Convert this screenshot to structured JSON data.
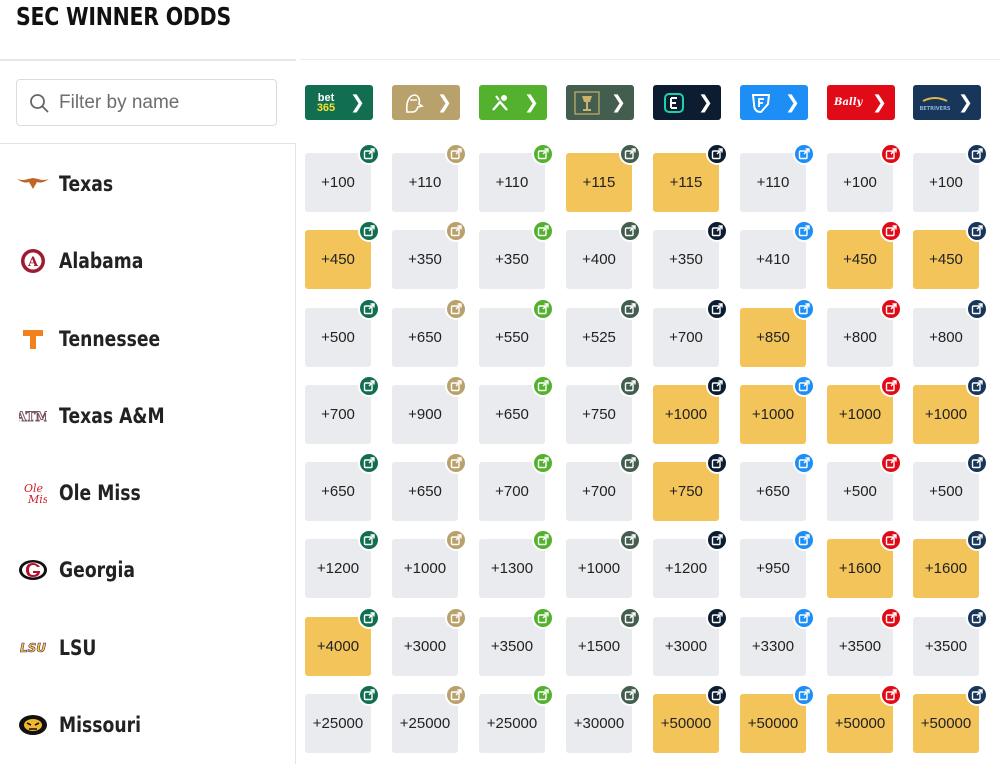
{
  "title": "SEC WINNER ODDS",
  "filter": {
    "placeholder": "Filter by name"
  },
  "books": [
    {
      "name": "bet365",
      "logo_text": "bet\n365",
      "color": "#126e51",
      "logo_color": "#f7e12f"
    },
    {
      "name": "BetMGM",
      "logo_text": "",
      "color": "#b9a16c",
      "logo_color": "#ffffff"
    },
    {
      "name": "DraftKings",
      "logo_text": "",
      "color": "#53b12e",
      "logo_color": "#ffffff"
    },
    {
      "name": "Circa",
      "logo_text": "",
      "color": "#435e4e",
      "logo_color": "#c9b26b"
    },
    {
      "name": "ESPN BET",
      "logo_text": "E",
      "color": "#0c1d31",
      "logo_color": "#19d3a9"
    },
    {
      "name": "FanDuel",
      "logo_text": "",
      "color": "#1c8ef5",
      "logo_color": "#ffffff"
    },
    {
      "name": "Bally Bet",
      "logo_text": "Bally",
      "color": "#e10b17",
      "logo_color": "#ffffff"
    },
    {
      "name": "BetRivers",
      "logo_text": "BETRIVERS",
      "color": "#183659",
      "logo_color": "#e3b84a"
    }
  ],
  "arrow_glyph": "❯",
  "teams": [
    {
      "name": "Texas",
      "icon": "longhorn-icon",
      "odds": [
        "+100",
        "+110",
        "+110",
        "+115",
        "+115",
        "+110",
        "+100",
        "+100"
      ],
      "best": [
        false,
        false,
        false,
        true,
        true,
        false,
        false,
        false
      ]
    },
    {
      "name": "Alabama",
      "icon": "alabama-logo-icon",
      "odds": [
        "+450",
        "+350",
        "+350",
        "+400",
        "+350",
        "+410",
        "+450",
        "+450"
      ],
      "best": [
        true,
        false,
        false,
        false,
        false,
        false,
        true,
        true
      ]
    },
    {
      "name": "Tennessee",
      "icon": "tennessee-t-icon",
      "odds": [
        "+500",
        "+650",
        "+550",
        "+525",
        "+700",
        "+850",
        "+800",
        "+800"
      ],
      "best": [
        false,
        false,
        false,
        false,
        false,
        true,
        false,
        false
      ]
    },
    {
      "name": "Texas A&M",
      "icon": "atm-logo-icon",
      "odds": [
        "+700",
        "+900",
        "+650",
        "+750",
        "+1000",
        "+1000",
        "+1000",
        "+1000"
      ],
      "best": [
        false,
        false,
        false,
        false,
        true,
        true,
        true,
        true
      ]
    },
    {
      "name": "Ole Miss",
      "icon": "ole-miss-logo-icon",
      "odds": [
        "+650",
        "+650",
        "+700",
        "+700",
        "+750",
        "+650",
        "+500",
        "+500"
      ],
      "best": [
        false,
        false,
        false,
        false,
        true,
        false,
        false,
        false
      ]
    },
    {
      "name": "Georgia",
      "icon": "georgia-g-icon",
      "odds": [
        "+1200",
        "+1000",
        "+1300",
        "+1000",
        "+1200",
        "+950",
        "+1600",
        "+1600"
      ],
      "best": [
        false,
        false,
        false,
        false,
        false,
        false,
        true,
        true
      ]
    },
    {
      "name": "LSU",
      "icon": "lsu-logo-icon",
      "odds": [
        "+4000",
        "+3000",
        "+3500",
        "+1500",
        "+3000",
        "+3300",
        "+3500",
        "+3500"
      ],
      "best": [
        true,
        false,
        false,
        false,
        false,
        false,
        false,
        false
      ]
    },
    {
      "name": "Missouri",
      "icon": "missouri-tiger-icon",
      "odds": [
        "+25000",
        "+25000",
        "+25000",
        "+30000",
        "+50000",
        "+50000",
        "+50000",
        "+50000"
      ],
      "best": [
        false,
        false,
        false,
        false,
        true,
        true,
        true,
        true
      ]
    }
  ]
}
